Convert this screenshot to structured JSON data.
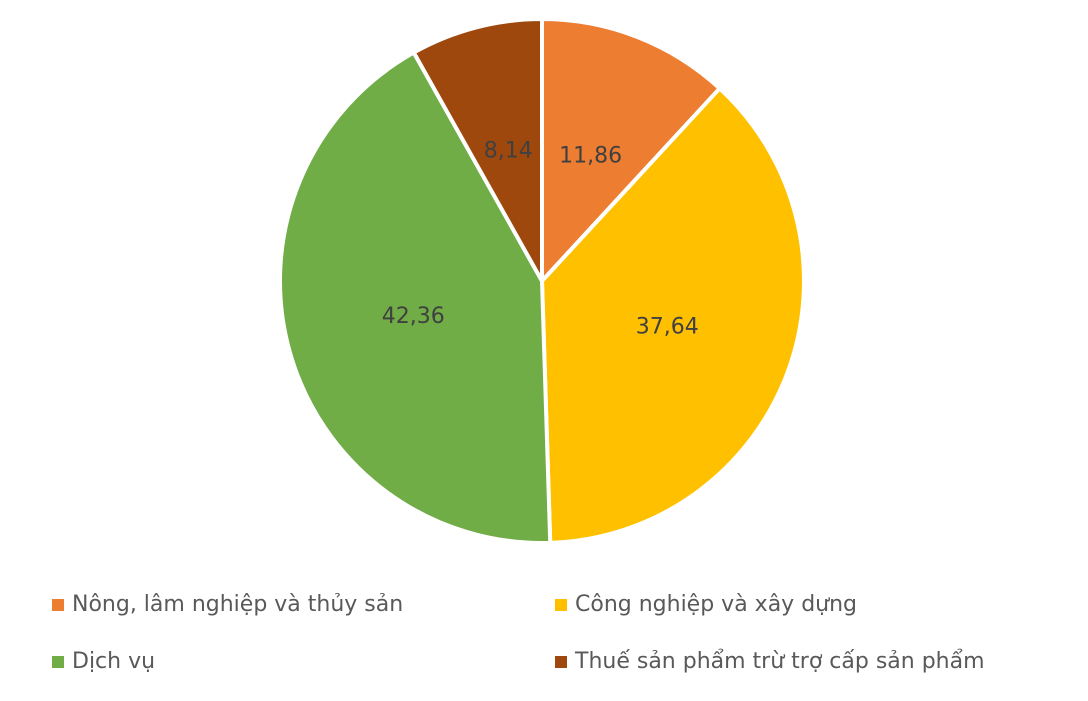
{
  "chart_data": {
    "type": "pie",
    "categories": [
      "Nông, lâm nghiệp và thủy sản",
      "Công nghiệp và xây dựng",
      "Dịch vụ",
      "Thuế sản phẩm trừ trợ cấp sản phẩm"
    ],
    "values": [
      11.86,
      37.64,
      42.36,
      8.14
    ],
    "value_labels": [
      "11,86",
      "37,64",
      "42,36",
      "8,14"
    ],
    "colors": [
      "#ED7D31",
      "#FFC000",
      "#70AD47",
      "#9E480E"
    ]
  }
}
